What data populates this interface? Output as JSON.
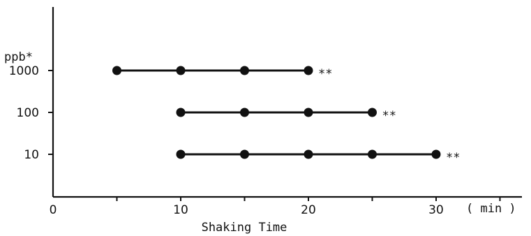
{
  "chart_data": {
    "type": "line",
    "ylabel": "ppb*",
    "xlabel": "Shaking Time",
    "x_unit": "( min )",
    "xlim": [
      0,
      37
    ],
    "x_ticks": [
      0,
      10,
      20,
      30
    ],
    "y_categories": [
      "1000",
      "100",
      "10"
    ],
    "grid": false,
    "series": [
      {
        "level": "1000",
        "x": [
          5,
          10,
          15,
          20
        ],
        "annotation": "**"
      },
      {
        "level": "100",
        "x": [
          10,
          15,
          20,
          25
        ],
        "annotation": "**"
      },
      {
        "level": "10",
        "x": [
          10,
          15,
          20,
          25,
          30
        ],
        "annotation": "**"
      }
    ],
    "colors": {
      "ink": "#111111"
    }
  }
}
